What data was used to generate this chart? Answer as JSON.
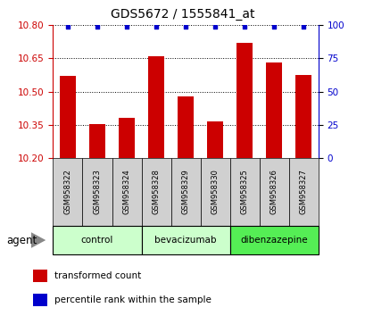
{
  "title": "GDS5672 / 1555841_at",
  "samples": [
    "GSM958322",
    "GSM958323",
    "GSM958324",
    "GSM958328",
    "GSM958329",
    "GSM958330",
    "GSM958325",
    "GSM958326",
    "GSM958327"
  ],
  "bar_values": [
    10.57,
    10.355,
    10.38,
    10.66,
    10.48,
    10.365,
    10.72,
    10.63,
    10.575
  ],
  "percentile_values": [
    99,
    99,
    99,
    99,
    99,
    99,
    99,
    99,
    99
  ],
  "ylim_left": [
    10.2,
    10.8
  ],
  "ylim_right": [
    0,
    100
  ],
  "yticks_left": [
    10.2,
    10.35,
    10.5,
    10.65,
    10.8
  ],
  "yticks_right": [
    0,
    25,
    50,
    75,
    100
  ],
  "bar_color": "#cc0000",
  "percentile_color": "#0000cc",
  "groups": [
    {
      "label": "control",
      "start": 0,
      "end": 3,
      "color": "#ccffcc"
    },
    {
      "label": "bevacizumab",
      "start": 3,
      "end": 6,
      "color": "#ccffcc"
    },
    {
      "label": "dibenzazepine",
      "start": 6,
      "end": 9,
      "color": "#55ee55"
    }
  ],
  "agent_label": "agent",
  "legend_bar_label": "transformed count",
  "legend_dot_label": "percentile rank within the sample",
  "tick_label_color_left": "#cc0000",
  "tick_label_color_right": "#0000cc",
  "bar_width": 0.55
}
